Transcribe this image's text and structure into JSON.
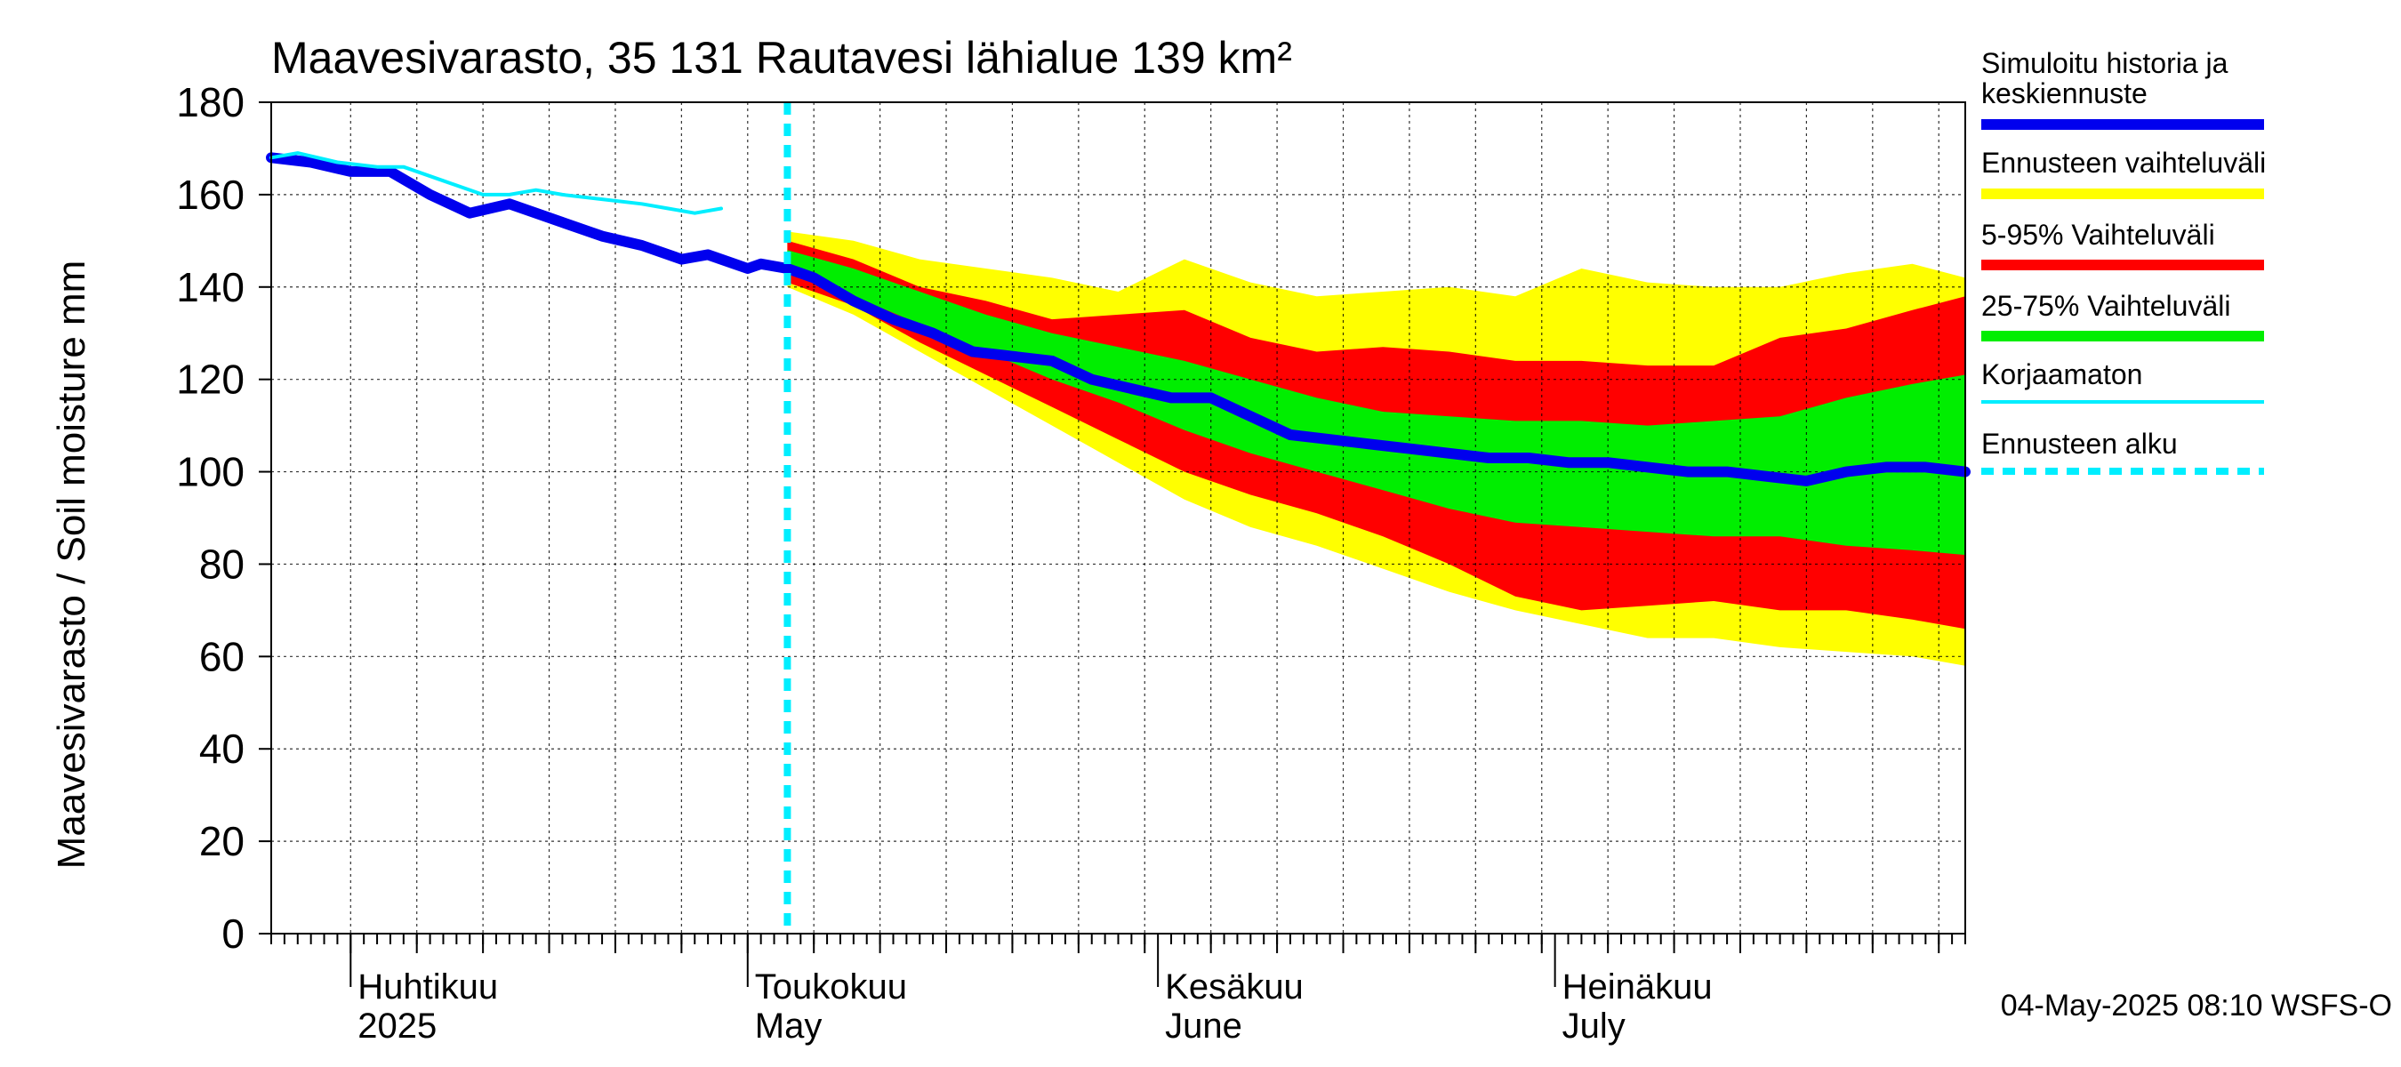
{
  "chart_data": {
    "type": "area",
    "title": "Maavesivarasto, 35 131 Rautavesi lähialue 139 km²",
    "ylabel": "Maavesivarasto / Soil moisture   mm",
    "ylim": [
      0,
      180
    ],
    "yticks": [
      "0",
      "20",
      "40",
      "60",
      "80",
      "100",
      "120",
      "140",
      "160",
      "180"
    ],
    "xlim": [
      "2025-03-26",
      "2025-08-01"
    ],
    "month_labels": [
      {
        "date": "2025-04-01",
        "fi": "Huhtikuu",
        "en": "2025"
      },
      {
        "date": "2025-05-01",
        "fi": "Toukokuu",
        "en": "May"
      },
      {
        "date": "2025-06-01",
        "fi": "Kesäkuu",
        "en": "June"
      },
      {
        "date": "2025-07-01",
        "fi": "Heinäkuu",
        "en": "July"
      }
    ],
    "forecast_start": "2025-05-04",
    "footer": "04-May-2025 08:10 WSFS-O",
    "legend": [
      {
        "label": "Simuloitu historia ja keskiennuste",
        "color": "#0000ee",
        "style": "thick"
      },
      {
        "label": "Ennusteen vaihteluväli",
        "color": "#ffff00",
        "style": "band"
      },
      {
        "label": "5-95% Vaihteluväli",
        "color": "#ff0000",
        "style": "band"
      },
      {
        "label": "25-75% Vaihteluväli",
        "color": "#00ee00",
        "style": "band"
      },
      {
        "label": "Korjaamaton",
        "color": "#00eeff",
        "style": "thin"
      },
      {
        "label": "Ennusteen alku",
        "color": "#00eeff",
        "style": "dashed"
      }
    ],
    "series": [
      {
        "name": "Simuloitu historia ja keskiennuste",
        "color": "#0000ee",
        "x": [
          "2025-03-26",
          "2025-03-29",
          "2025-04-01",
          "2025-04-04",
          "2025-04-07",
          "2025-04-10",
          "2025-04-13",
          "2025-04-15",
          "2025-04-17",
          "2025-04-20",
          "2025-04-23",
          "2025-04-26",
          "2025-04-28",
          "2025-04-30",
          "2025-05-01",
          "2025-05-02",
          "2025-05-04",
          "2025-05-06",
          "2025-05-09",
          "2025-05-12",
          "2025-05-15",
          "2025-05-18",
          "2025-05-21",
          "2025-05-24",
          "2025-05-27",
          "2025-05-30",
          "2025-06-02",
          "2025-06-05",
          "2025-06-08",
          "2025-06-11",
          "2025-06-14",
          "2025-06-17",
          "2025-06-20",
          "2025-06-23",
          "2025-06-26",
          "2025-06-29",
          "2025-07-02",
          "2025-07-05",
          "2025-07-08",
          "2025-07-11",
          "2025-07-14",
          "2025-07-17",
          "2025-07-20",
          "2025-07-23",
          "2025-07-26",
          "2025-07-29",
          "2025-08-01"
        ],
        "y": [
          168,
          167,
          165,
          165,
          160,
          156,
          158,
          156,
          154,
          151,
          149,
          146,
          147,
          145,
          144,
          145,
          144,
          142,
          137,
          133,
          130,
          126,
          125,
          124,
          120,
          118,
          116,
          116,
          112,
          108,
          107,
          106,
          105,
          104,
          103,
          103,
          102,
          102,
          101,
          100,
          100,
          99,
          98,
          100,
          101,
          101,
          100
        ]
      },
      {
        "name": "Korjaamaton",
        "color": "#00eeff",
        "x": [
          "2025-03-26",
          "2025-03-28",
          "2025-03-31",
          "2025-04-03",
          "2025-04-05",
          "2025-04-08",
          "2025-04-11",
          "2025-04-13",
          "2025-04-15",
          "2025-04-17",
          "2025-04-20",
          "2025-04-23",
          "2025-04-25",
          "2025-04-27",
          "2025-04-29"
        ],
        "y": [
          168,
          169,
          167,
          166,
          166,
          163,
          160,
          160,
          161,
          160,
          159,
          158,
          157,
          156,
          157
        ]
      },
      {
        "name": "Ennusteen vaihteluväli",
        "color": "#ffff00",
        "x": [
          "2025-05-04",
          "2025-05-09",
          "2025-05-14",
          "2025-05-19",
          "2025-05-24",
          "2025-05-29",
          "2025-06-03",
          "2025-06-08",
          "2025-06-13",
          "2025-06-18",
          "2025-06-23",
          "2025-06-28",
          "2025-07-03",
          "2025-07-08",
          "2025-07-13",
          "2025-07-18",
          "2025-07-23",
          "2025-07-28",
          "2025-08-01"
        ],
        "upper": [
          152,
          150,
          146,
          144,
          142,
          139,
          146,
          141,
          138,
          139,
          140,
          138,
          144,
          141,
          140,
          140,
          143,
          145,
          142
        ],
        "lower": [
          140,
          134,
          126,
          118,
          110,
          102,
          94,
          88,
          84,
          79,
          74,
          70,
          67,
          64,
          64,
          62,
          61,
          60,
          58
        ]
      },
      {
        "name": "5-95% Vaihteluväli",
        "color": "#ff0000",
        "x": [
          "2025-05-04",
          "2025-05-09",
          "2025-05-14",
          "2025-05-19",
          "2025-05-24",
          "2025-05-29",
          "2025-06-03",
          "2025-06-08",
          "2025-06-13",
          "2025-06-18",
          "2025-06-23",
          "2025-06-28",
          "2025-07-03",
          "2025-07-08",
          "2025-07-13",
          "2025-07-18",
          "2025-07-23",
          "2025-07-28",
          "2025-08-01"
        ],
        "upper": [
          150,
          146,
          140,
          137,
          133,
          134,
          135,
          129,
          126,
          127,
          126,
          124,
          124,
          123,
          123,
          129,
          131,
          135,
          138
        ],
        "lower": [
          141,
          136,
          128,
          121,
          114,
          107,
          100,
          95,
          91,
          86,
          80,
          73,
          70,
          71,
          72,
          70,
          70,
          68,
          66
        ]
      },
      {
        "name": "25-75% Vaihteluväli",
        "color": "#00ee00",
        "x": [
          "2025-05-04",
          "2025-05-09",
          "2025-05-14",
          "2025-05-19",
          "2025-05-24",
          "2025-05-29",
          "2025-06-03",
          "2025-06-08",
          "2025-06-13",
          "2025-06-18",
          "2025-06-23",
          "2025-06-28",
          "2025-07-03",
          "2025-07-08",
          "2025-07-13",
          "2025-07-18",
          "2025-07-23",
          "2025-07-28",
          "2025-08-01"
        ],
        "upper": [
          148,
          144,
          139,
          134,
          130,
          127,
          124,
          120,
          116,
          113,
          112,
          111,
          111,
          110,
          111,
          112,
          116,
          119,
          121
        ],
        "lower": [
          143,
          138,
          132,
          126,
          120,
          115,
          109,
          104,
          100,
          96,
          92,
          89,
          88,
          87,
          86,
          86,
          84,
          83,
          82
        ]
      }
    ]
  }
}
